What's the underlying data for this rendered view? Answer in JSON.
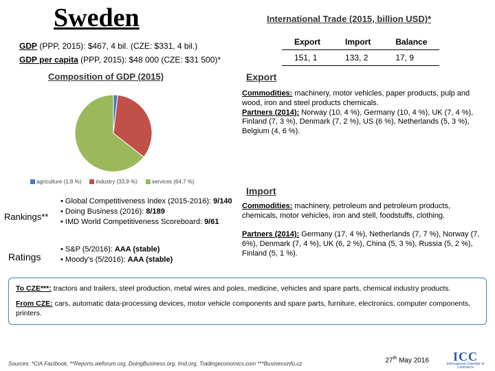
{
  "title": "Sweden",
  "gdp_line1": {
    "label": "GDP",
    "text": " (PPP, 2015): $467, 4 bil. (CZE: $331, 4 bil.)"
  },
  "gdp_line2": {
    "label": "GDP per capita",
    "text": " (PPP, 2015): $48 000 (CZE: $31 500)*"
  },
  "composition": {
    "title": "Composition of GDP (2015)",
    "type": "pie",
    "slices": [
      {
        "name": "agriculture",
        "value": 1.8,
        "color": "#4a78c4",
        "label": "agriculture (1,8 %)"
      },
      {
        "name": "industry",
        "value": 33.9,
        "color": "#c05048",
        "label": "industry (33,9 %)"
      },
      {
        "name": "services",
        "value": 64.7,
        "color": "#9ab95a",
        "label": "services (64,7 %)"
      }
    ],
    "background_color": "#ffffff",
    "radius": 56
  },
  "trade": {
    "title": "International Trade (2015, billion USD)*",
    "headers": [
      "Export",
      "Import",
      "Balance"
    ],
    "row": [
      "151, 1",
      "133, 2",
      "17, 9"
    ]
  },
  "export_section": {
    "title": "Export",
    "commodities_label": "Commodities:",
    "commodities": " machinery, motor vehicles, paper products, pulp and wood, iron and steel products chemicals.",
    "partners_label": "Partners (2014):",
    "partners": " Norway (10, 4 %), Germany (10, 4 %), UK (7, 4 %), Finland (7, 3 %), Denmark (7, 2 %), US (6 %), Netherlands (5, 3 %), Belgium (4, 6 %)."
  },
  "import_section": {
    "title": "Import",
    "commodities_label": "Commodities:",
    "commodities": " machinery, petroleum and petroleum products, chemicals, motor vehicles, iron and stell, foodstuffs, clothing.",
    "partners_label": "Partners (2014):",
    "partners": " Germany (17, 4 %), Netherlands (7, 7 %), Norway (7, 6%), Denmark (7, 4 %), UK (6, 2 %), China (5, 3 %), Russia (5, 2 %), Finland (5, 1 %)."
  },
  "rankings": {
    "label": "Rankings**",
    "items": [
      {
        "pre": "• Global Competitiveness Index (2015-2016): ",
        "val": "9/140"
      },
      {
        "pre": "• Doing Business (2016): ",
        "val": " 8/189"
      },
      {
        "pre": "• IMD World Competitiveness Scoreboard: ",
        "val": "9/61"
      }
    ]
  },
  "ratings": {
    "label": "Ratings",
    "items": [
      {
        "pre": "• S&P (5/2016): ",
        "val": "AAA (stable)"
      },
      {
        "pre": "• Moody's (5/2016): ",
        "val": "AAA (stable)"
      }
    ]
  },
  "footer": {
    "to_cze_label": "To CZE***:",
    "to_cze": " tractors and trailers, steel production, metal wires and poles, medicine, vehicles and spare parts, chemical industry products.",
    "from_cze_label": "From CZE:",
    "from_cze": " cars, automatic data-processing devices, motor vehicle components and spare parts, furniture, electronics, computer components, printers."
  },
  "sources": "Sources: *CIA Factbook, **Reports.weforum.org, DoingBusiness.org, Imd.org, Tradingeconomics.com ***Businessinfo.cz",
  "date_day": "27",
  "date_suffix": "th",
  "date_rest": " May 2016",
  "icc": {
    "letters": "ICC",
    "tag": "International Chamber of Commerce"
  }
}
